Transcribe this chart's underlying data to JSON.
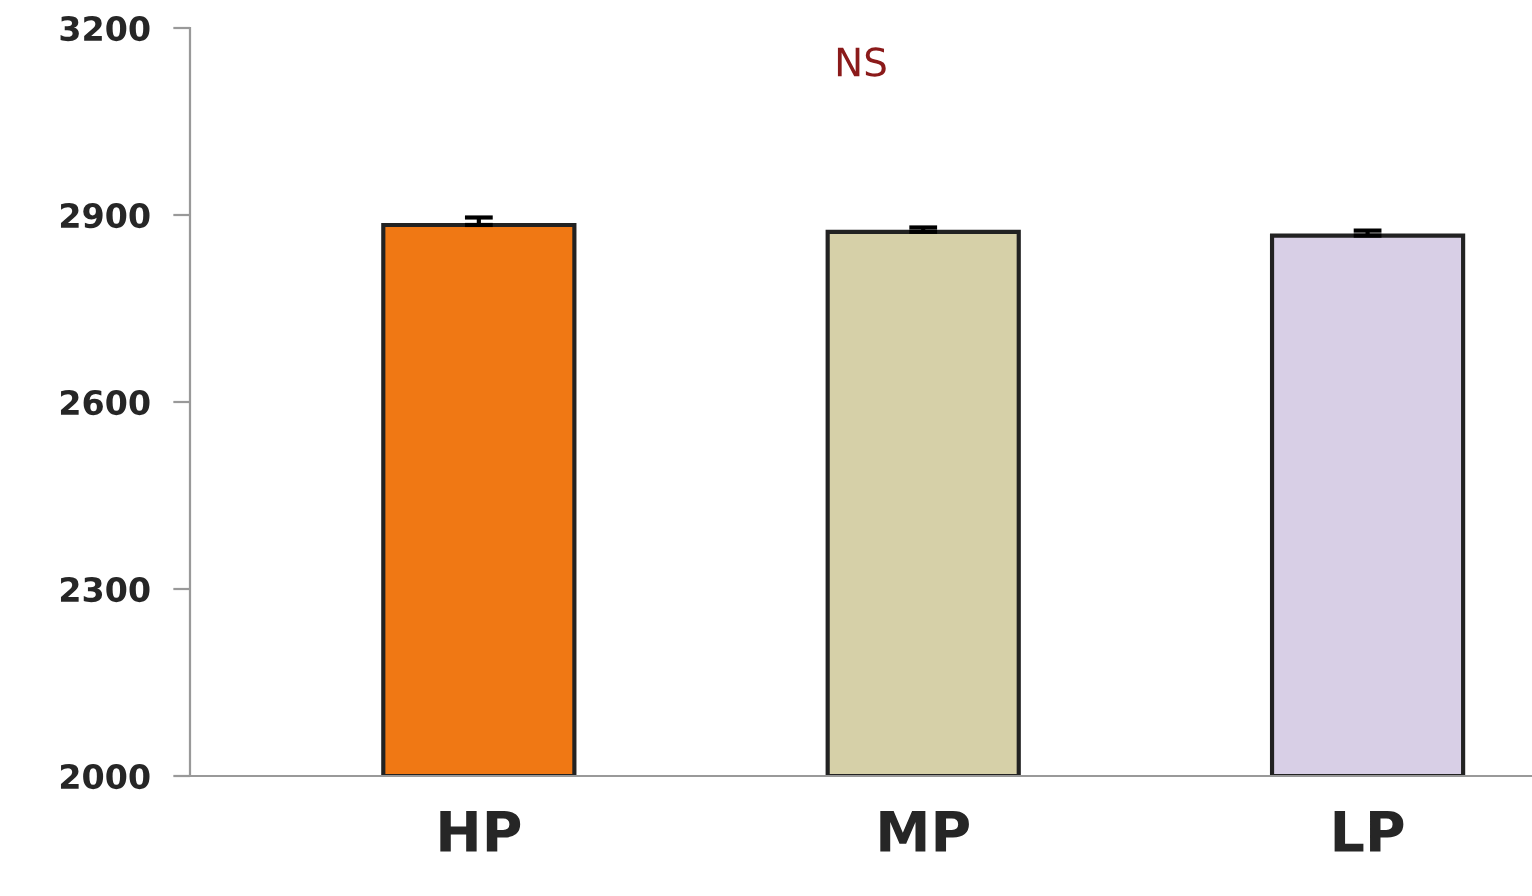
{
  "chart_data": {
    "type": "bar",
    "categories": [
      "HP",
      "MP",
      "LP"
    ],
    "values": [
      2884,
      2873,
      2867
    ],
    "errors": [
      [
        2884,
        2896
      ],
      [
        2873,
        2880
      ],
      [
        2867,
        2875
      ]
    ],
    "colors": [
      "#f07814",
      "#d6d0a8",
      "#d8cfe6"
    ],
    "ylim": [
      2000,
      3200
    ],
    "yticks": [
      2000,
      2300,
      2600,
      2900,
      3200
    ],
    "annotations": [
      "NS"
    ],
    "grid": false,
    "legend": false
  }
}
